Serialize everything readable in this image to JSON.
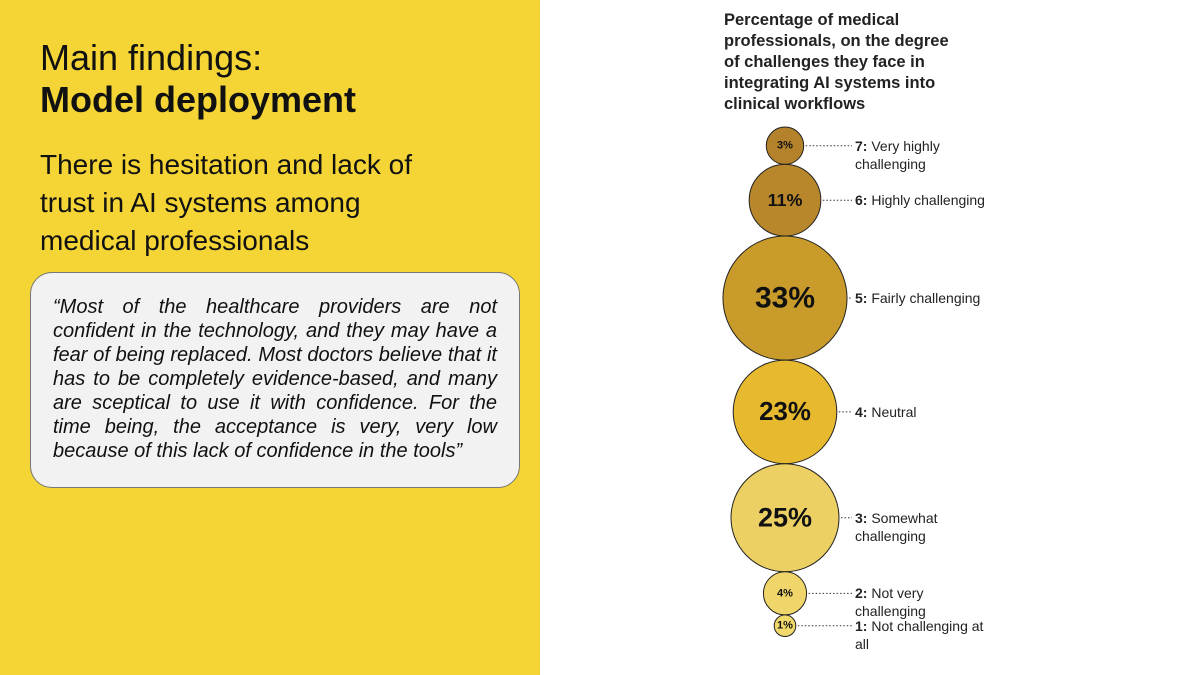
{
  "slide": {
    "heading": "Main findings:",
    "heading_bold": "Model deployment",
    "subheading": "There is hesitation and lack of trust in AI systems among medical professionals",
    "quote": "“Most of the healthcare providers are not confident in the technology, and they may have a fear of being replaced. Most doctors believe that it has to be completely evidence-based, and many are sceptical to use it with confidence. For the time being, the acceptance is very, very low because of this lack of confidence in the tools”"
  },
  "chart_data": {
    "type": "bubble",
    "title": "Percentage of medical professionals, on the degree of challenges they face in integrating AI systems into clinical workflows",
    "levels": [
      "7:",
      "6:",
      "5:",
      "4:",
      "3:",
      "2:",
      "1:"
    ],
    "categories": [
      "Very highly challenging",
      "Highly challenging",
      "Fairly challenging",
      "Neutral",
      "Somewhat challenging",
      "Not very challenging",
      "Not challenging at all"
    ],
    "values": [
      3,
      11,
      33,
      23,
      25,
      4,
      1
    ],
    "value_labels": [
      "3%",
      "11%",
      "33%",
      "23%",
      "25%",
      "4%",
      "1%"
    ],
    "colors": [
      "#b3822a",
      "#b8872b",
      "#c99b2b",
      "#e6b92f",
      "#ecd063",
      "#f0d66a",
      "#f2d96c"
    ]
  }
}
